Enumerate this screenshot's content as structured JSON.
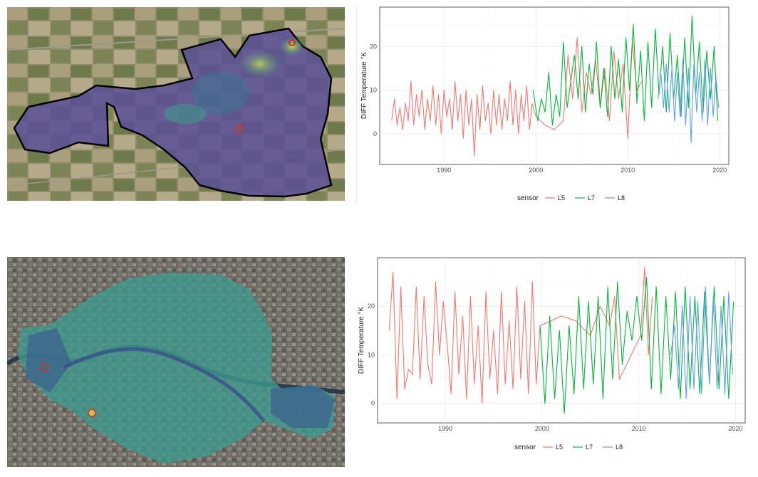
{
  "maps": [
    {
      "name": "top-map",
      "accent": "#3b3f8f",
      "marker_color": "#d7301f"
    },
    {
      "name": "bottom-map",
      "accent": "#2e7f8e",
      "marker_color": "#d7301f"
    }
  ],
  "colors": {
    "L5": "#f8766d",
    "L7": "#00ba38",
    "L8": "#619cff"
  },
  "chart_data": [
    {
      "type": "line",
      "ylabel": "DIFF Temperature °K",
      "xlabel": "",
      "xlim": [
        1983,
        2021
      ],
      "ylim": [
        -7,
        29
      ],
      "x_ticks": [
        1990,
        2000,
        2010,
        2020
      ],
      "y_ticks": [
        0,
        10,
        20
      ],
      "legend_title": "sensor",
      "legend_position": "bottom",
      "grid": true,
      "series": [
        {
          "name": "L5",
          "x": [
            1984.3,
            1984.6,
            1984.9,
            1985.2,
            1985.5,
            1985.8,
            1986.1,
            1986.4,
            1986.7,
            1987.0,
            1987.3,
            1987.6,
            1987.9,
            1988.2,
            1988.5,
            1988.8,
            1989.1,
            1989.4,
            1989.7,
            1990.0,
            1990.3,
            1990.6,
            1990.9,
            1991.2,
            1991.5,
            1991.8,
            1992.1,
            1992.4,
            1992.7,
            1993.0,
            1993.3,
            1993.6,
            1993.9,
            1994.2,
            1994.5,
            1994.8,
            1995.1,
            1995.4,
            1995.7,
            1996.0,
            1996.3,
            1996.6,
            1996.9,
            1997.2,
            1997.5,
            1997.8,
            1998.1,
            1998.4,
            1998.7,
            1999.0,
            1999.3,
            1999.6,
            2000.0,
            2001.0,
            2002.0,
            2003.0,
            2003.5,
            2004.0,
            2004.5,
            2005.0,
            2005.5,
            2006.0,
            2006.5,
            2007.0,
            2007.5,
            2008.0,
            2008.5,
            2009.0,
            2009.5,
            2010.0,
            2010.5,
            2011.0,
            2011.5
          ],
          "y": [
            3,
            8,
            2,
            6,
            1,
            7,
            3,
            12,
            2,
            9,
            4,
            10,
            1,
            8,
            3,
            11,
            2,
            9,
            0,
            10,
            4,
            8,
            1,
            12,
            3,
            9,
            -1,
            10,
            2,
            8,
            -5,
            9,
            1,
            11,
            3,
            7,
            0,
            10,
            2,
            9,
            1,
            8,
            3,
            12,
            2,
            10,
            0,
            9,
            3,
            11,
            1,
            7,
            4,
            2,
            1,
            3,
            18,
            8,
            22,
            5,
            14,
            9,
            17,
            6,
            15,
            3,
            19,
            8,
            16,
            -1,
            21,
            10,
            12
          ]
        },
        {
          "name": "L7",
          "x": [
            1999.7,
            2000.2,
            2000.6,
            2001.0,
            2001.4,
            2001.8,
            2002.2,
            2002.6,
            2003.0,
            2003.4,
            2003.8,
            2004.2,
            2004.6,
            2005.0,
            2005.4,
            2005.8,
            2006.2,
            2006.6,
            2007.0,
            2007.4,
            2007.8,
            2008.2,
            2008.6,
            2009.0,
            2009.4,
            2009.8,
            2010.2,
            2010.6,
            2011.0,
            2011.4,
            2011.8,
            2012.2,
            2012.6,
            2013.0,
            2013.4,
            2013.8,
            2014.2,
            2014.6,
            2015.0,
            2015.4,
            2015.8,
            2016.2,
            2016.6,
            2017.0,
            2017.4,
            2017.8,
            2018.2,
            2018.6,
            2019.0,
            2019.4,
            2019.8
          ],
          "y": [
            10,
            3,
            8,
            5,
            14,
            2,
            9,
            4,
            21,
            6,
            12,
            18,
            8,
            20,
            5,
            16,
            9,
            21,
            6,
            15,
            4,
            20,
            8,
            17,
            5,
            22,
            10,
            25,
            7,
            19,
            3,
            21,
            6,
            24,
            9,
            20,
            5,
            23,
            8,
            18,
            4,
            22,
            6,
            27,
            9,
            21,
            5,
            19,
            8,
            20,
            3
          ]
        },
        {
          "name": "L8",
          "x": [
            2013.3,
            2013.6,
            2013.9,
            2014.2,
            2014.5,
            2014.8,
            2015.1,
            2015.4,
            2015.7,
            2016.0,
            2016.3,
            2016.6,
            2016.9,
            2017.2,
            2017.5,
            2017.8,
            2018.1,
            2018.4,
            2018.7,
            2019.0,
            2019.3,
            2019.6,
            2019.9
          ],
          "y": [
            8,
            14,
            6,
            16,
            5,
            15,
            3,
            14,
            4,
            17,
            2,
            15,
            -2,
            16,
            5,
            14,
            3,
            17,
            2,
            15,
            4,
            13,
            6
          ]
        }
      ]
    },
    {
      "type": "line",
      "ylabel": "DIFF Temperature °K",
      "xlabel": "",
      "xlim": [
        1983,
        2021
      ],
      "ylim": [
        -4,
        30
      ],
      "x_ticks": [
        1990,
        2000,
        2010,
        2020
      ],
      "y_ticks": [
        0,
        10,
        20
      ],
      "legend_title": "sensor",
      "legend_position": "bottom",
      "grid": true,
      "series": [
        {
          "name": "L5",
          "x": [
            1984.2,
            1984.6,
            1985.0,
            1985.4,
            1985.8,
            1986.2,
            1986.6,
            1987.0,
            1987.4,
            1987.8,
            1988.2,
            1988.6,
            1989.0,
            1989.4,
            1989.8,
            1990.2,
            1990.6,
            1991.0,
            1991.4,
            1991.8,
            1992.2,
            1992.6,
            1993.0,
            1993.4,
            1993.8,
            1994.2,
            1994.6,
            1995.0,
            1995.4,
            1995.8,
            1996.2,
            1996.6,
            1997.0,
            1997.4,
            1997.8,
            1998.2,
            1998.6,
            1999.0,
            1999.4,
            1999.8,
            2002.0,
            2003.5,
            2005.0,
            2006.0,
            2007.0,
            2007.5,
            2008.0,
            2010.2,
            2010.6,
            2011.0,
            2011.4
          ],
          "y": [
            15,
            27,
            1,
            24,
            3,
            7,
            6,
            24,
            5,
            22,
            8,
            4,
            25,
            10,
            21,
            12,
            2,
            23,
            6,
            18,
            1,
            22,
            4,
            16,
            0,
            23,
            5,
            15,
            2,
            23,
            4,
            17,
            3,
            24,
            5,
            21,
            2,
            25,
            4,
            16,
            18,
            17,
            14,
            20,
            16,
            22,
            5,
            14,
            28,
            10,
            22
          ]
        },
        {
          "name": "L7",
          "x": [
            1999.8,
            2000.3,
            2000.8,
            2001.3,
            2001.8,
            2002.3,
            2002.8,
            2003.3,
            2003.8,
            2004.3,
            2004.8,
            2005.3,
            2005.8,
            2006.3,
            2006.8,
            2007.3,
            2007.8,
            2008.3,
            2008.8,
            2009.3,
            2009.8,
            2010.3,
            2010.8,
            2011.3,
            2011.8,
            2012.3,
            2012.8,
            2013.3,
            2013.8,
            2014.3,
            2014.8,
            2015.3,
            2015.8,
            2016.3,
            2016.8,
            2017.3,
            2017.8,
            2018.3,
            2018.8,
            2019.3,
            2019.8
          ],
          "y": [
            16,
            0,
            18,
            1,
            15,
            -2,
            16,
            2,
            22,
            3,
            21,
            4,
            22,
            1,
            24,
            5,
            25,
            8,
            19,
            13,
            22,
            13,
            26,
            3,
            24,
            2,
            22,
            5,
            23,
            1,
            24,
            3,
            22,
            2,
            23,
            4,
            24,
            3,
            22,
            1,
            21
          ]
        },
        {
          "name": "L8",
          "x": [
            2013.3,
            2013.7,
            2014.1,
            2014.5,
            2014.9,
            2015.3,
            2015.7,
            2016.1,
            2016.5,
            2016.9,
            2017.3,
            2017.7,
            2018.1,
            2018.5,
            2018.9,
            2019.3,
            2019.7
          ],
          "y": [
            10,
            16,
            3,
            20,
            1,
            22,
            3,
            21,
            2,
            24,
            4,
            22,
            3,
            20,
            2,
            23,
            6
          ]
        }
      ]
    }
  ]
}
